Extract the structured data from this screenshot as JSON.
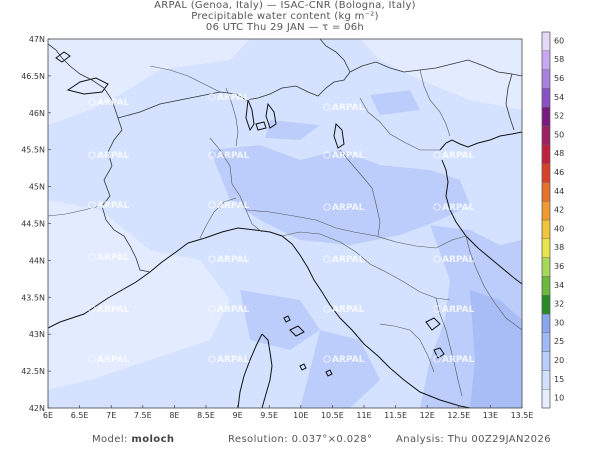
{
  "header": {
    "line1": "ARPAL (Genoa, Italy)  —  ISAC-CNR (Bologna, Italy)",
    "line2": "Precipitable water content (kg m⁻²)",
    "line3": "06 UTC Thu 29 JAN  —  τ = 06h"
  },
  "axes": {
    "lon_labels": [
      "6E",
      "6.5E",
      "7E",
      "7.5E",
      "8E",
      "8.5E",
      "9E",
      "9.5E",
      "10E",
      "10.5E",
      "11E",
      "11.5E",
      "12E",
      "12.5E",
      "13E",
      "13.5E"
    ],
    "lat_labels": [
      "47N",
      "46.5N",
      "46N",
      "45.5N",
      "45N",
      "44.5N",
      "44N",
      "43.5N",
      "43N",
      "42.5N",
      "42N"
    ]
  },
  "colorbar": {
    "labels": [
      "10",
      "15",
      "20",
      "25",
      "30",
      "32",
      "34",
      "36",
      "38",
      "40",
      "42",
      "44",
      "46",
      "48",
      "50",
      "52",
      "54",
      "56",
      "58",
      "60"
    ],
    "colors": [
      "#e6eeff",
      "#d2e0ff",
      "#b9ceff",
      "#a0b9f8",
      "#8aa6ef",
      "#2a8a2a",
      "#6cb83a",
      "#a8d85a",
      "#e8e44a",
      "#f2c43a",
      "#f29a32",
      "#e8702a",
      "#d8402a",
      "#c02040",
      "#9a2060",
      "#7a1a80",
      "#8a50c8",
      "#a880e0",
      "#c8a8f0",
      "#e6d8fa"
    ]
  },
  "watermark": "ARPAL",
  "footer": {
    "model_label": "Model:",
    "model_value": "moloch",
    "resolution_label": "Resolution:",
    "resolution_value": "0.037°×0.028°",
    "analysis_label": "Analysis:",
    "analysis_value": "Thu 00Z29JAN2026"
  }
}
